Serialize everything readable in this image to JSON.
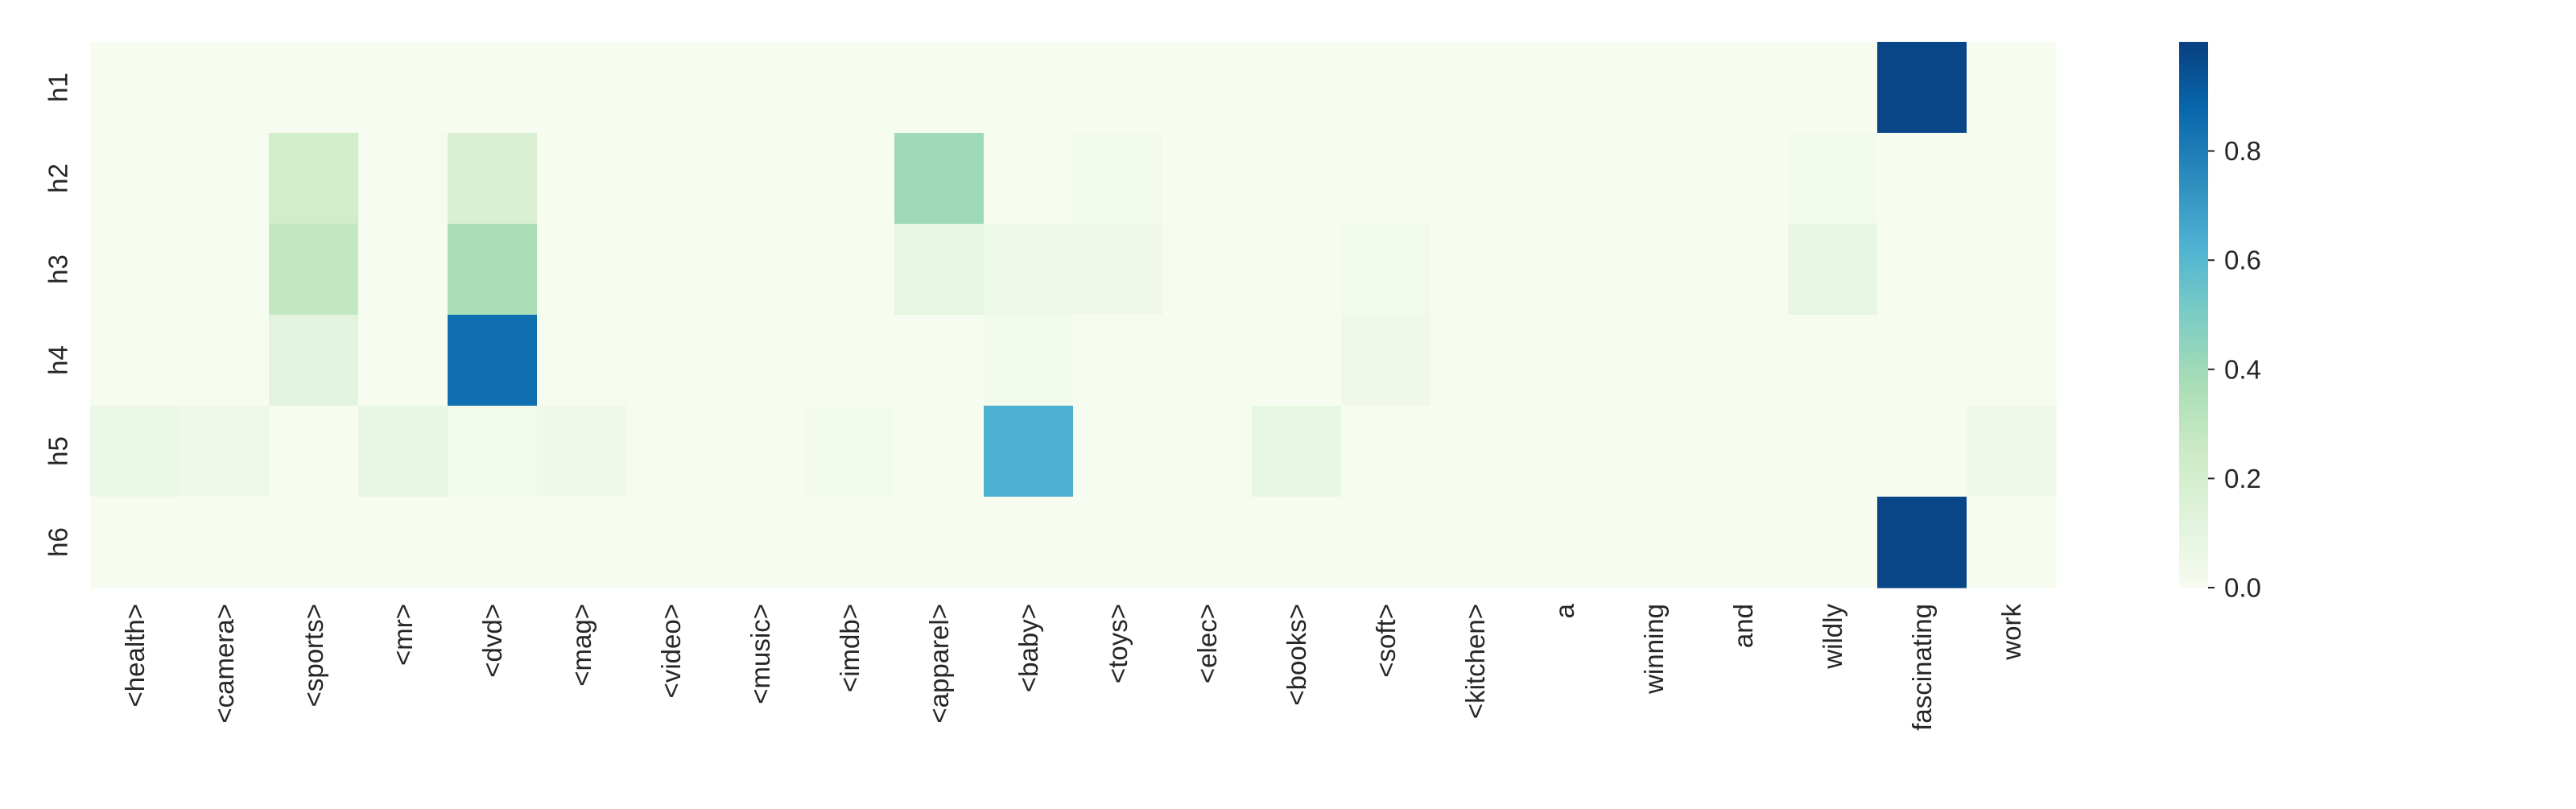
{
  "chart_data": {
    "type": "heatmap",
    "title": "",
    "xlabel": "",
    "ylabel": "",
    "rows": [
      "h1",
      "h2",
      "h3",
      "h4",
      "h5",
      "h6"
    ],
    "columns": [
      "<health>",
      "<camera>",
      "<sports>",
      "<mr>",
      "<dvd>",
      "<mag>",
      "<video>",
      "<music>",
      "<imdb>",
      "<apparel>",
      "<baby>",
      "<toys>",
      "<elec>",
      "<books>",
      "<soft>",
      "<kitchen>",
      "a",
      "winning",
      "and",
      "wildly",
      "fascinating",
      "work"
    ],
    "values": [
      [
        0.0,
        0.0,
        0.0,
        0.0,
        0.0,
        0.0,
        0.0,
        0.0,
        0.0,
        0.0,
        0.0,
        0.0,
        0.0,
        0.0,
        0.0,
        0.0,
        0.0,
        0.0,
        0.0,
        0.0,
        0.98,
        0.0
      ],
      [
        0.0,
        0.0,
        0.22,
        0.01,
        0.17,
        0.0,
        0.0,
        0.01,
        0.0,
        0.4,
        0.01,
        0.03,
        0.0,
        0.0,
        0.0,
        0.0,
        0.0,
        0.0,
        0.0,
        0.02,
        0.0,
        0.0
      ],
      [
        0.0,
        0.0,
        0.28,
        0.0,
        0.37,
        0.0,
        0.0,
        0.0,
        0.01,
        0.09,
        0.05,
        0.04,
        0.0,
        0.0,
        0.03,
        0.0,
        0.0,
        0.0,
        0.0,
        0.08,
        0.0,
        0.0
      ],
      [
        0.0,
        0.0,
        0.11,
        0.0,
        0.85,
        0.01,
        0.0,
        0.0,
        0.0,
        0.0,
        0.03,
        0.0,
        0.0,
        0.0,
        0.04,
        0.0,
        0.01,
        0.0,
        0.0,
        0.0,
        0.0,
        0.0
      ],
      [
        0.06,
        0.04,
        0.0,
        0.08,
        0.03,
        0.04,
        0.0,
        0.0,
        0.02,
        0.0,
        0.63,
        0.0,
        0.01,
        0.09,
        0.0,
        0.0,
        0.01,
        0.0,
        0.0,
        0.0,
        0.0,
        0.04
      ],
      [
        0.0,
        0.0,
        0.0,
        0.0,
        0.0,
        0.0,
        0.0,
        0.0,
        0.0,
        0.0,
        0.0,
        0.0,
        0.0,
        0.0,
        0.0,
        0.0,
        0.0,
        0.0,
        0.0,
        0.0,
        0.98,
        0.0
      ]
    ],
    "vmin": 0.0,
    "vmax": 1.0,
    "colormap": "GnBu",
    "colorbar": {
      "ticks": [
        0.0,
        0.2,
        0.4,
        0.6,
        0.8
      ],
      "tick_labels": [
        "0.0",
        "0.2",
        "0.4",
        "0.6",
        "0.8"
      ]
    },
    "grid": false,
    "legend": "colorbar-right"
  }
}
